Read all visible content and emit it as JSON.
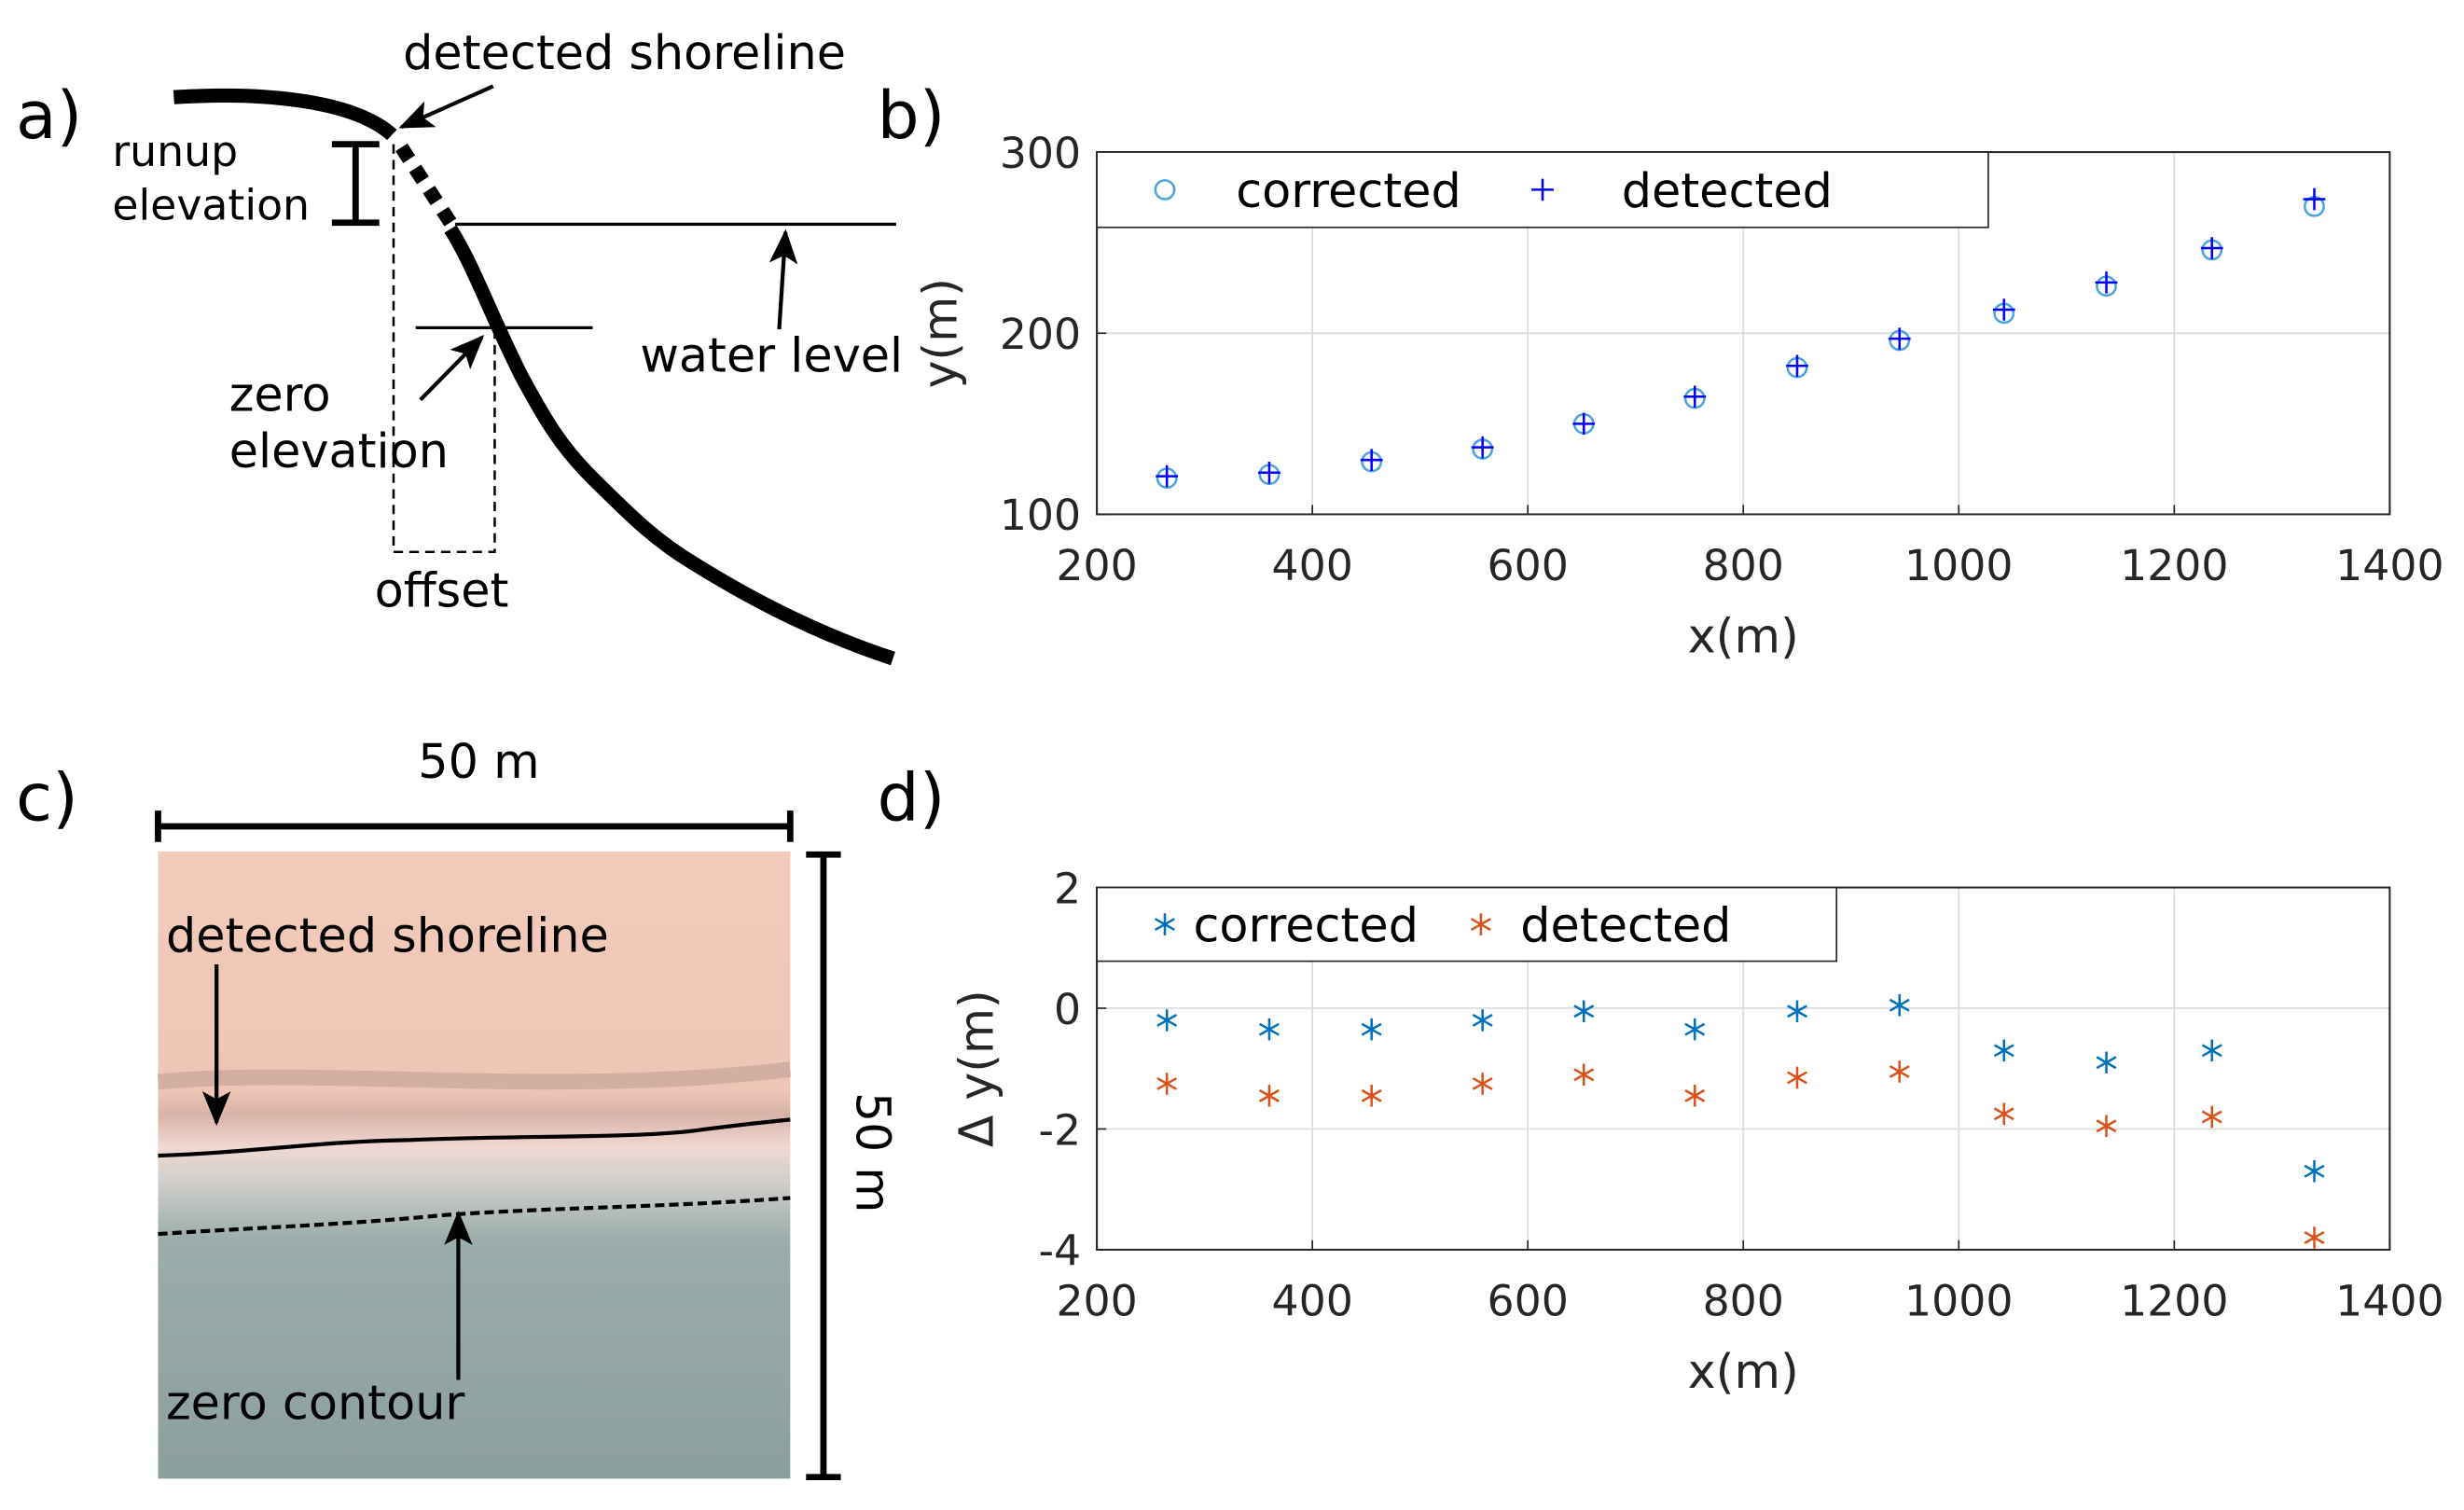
{
  "panel_a": {
    "label": "a)",
    "detected_shoreline": "detected shoreline",
    "runup_elevation": [
      "runup",
      "elevation"
    ],
    "water_level": "water level",
    "zero_elevation": [
      "zero",
      "elevation"
    ],
    "offset": "offset"
  },
  "panel_c": {
    "label": "c)",
    "width": "50 m",
    "height": "50 m",
    "detected_shoreline": "detected shoreline",
    "zero_contour": "zero contour"
  },
  "chart_data": [
    {
      "type": "scatter",
      "panel_label": "b)",
      "xlabel": "x(m)",
      "ylabel": "y(m)",
      "x": [
        265,
        360,
        455,
        558,
        652,
        755,
        850,
        945,
        1042,
        1137,
        1235,
        1330
      ],
      "series": [
        {
          "name": "corrected",
          "color": "#4aa3df",
          "marker": "o",
          "values": [
            120,
            122,
            129,
            136,
            150,
            164,
            181,
            196,
            211,
            226,
            246,
            270
          ]
        },
        {
          "name": "detected",
          "color": "#0000ff",
          "marker": "+",
          "values": [
            121,
            123,
            130,
            137,
            150,
            165,
            182,
            197,
            213,
            228,
            247,
            274
          ]
        }
      ],
      "xlim": [
        200,
        1400
      ],
      "xticks": [
        200,
        400,
        600,
        800,
        1000,
        1200,
        1400
      ],
      "ylim": [
        100,
        300
      ],
      "yticks": [
        100,
        200,
        300
      ],
      "grid": true,
      "legend": "top-left"
    },
    {
      "type": "scatter",
      "panel_label": "d)",
      "xlabel": "x(m)",
      "ylabel": "Δ y(m)",
      "x": [
        265,
        360,
        455,
        558,
        652,
        755,
        850,
        945,
        1042,
        1137,
        1235,
        1330
      ],
      "series": [
        {
          "name": "corrected",
          "color": "#0072bd",
          "marker": "*",
          "values": [
            -0.2,
            -0.35,
            -0.35,
            -0.2,
            -0.05,
            -0.35,
            -0.05,
            0.05,
            -0.7,
            -0.9,
            -0.7,
            -2.7
          ]
        },
        {
          "name": "detected",
          "color": "#d95319",
          "marker": "*",
          "values": [
            -1.25,
            -1.45,
            -1.45,
            -1.25,
            -1.1,
            -1.45,
            -1.15,
            -1.05,
            -1.75,
            -1.95,
            -1.8,
            -3.8
          ]
        }
      ],
      "xlim": [
        200,
        1400
      ],
      "xticks": [
        200,
        400,
        600,
        800,
        1000,
        1200,
        1400
      ],
      "ylim": [
        -4,
        2
      ],
      "yticks": [
        -4,
        -2,
        0,
        2
      ],
      "grid": true,
      "legend": "top-left"
    }
  ]
}
